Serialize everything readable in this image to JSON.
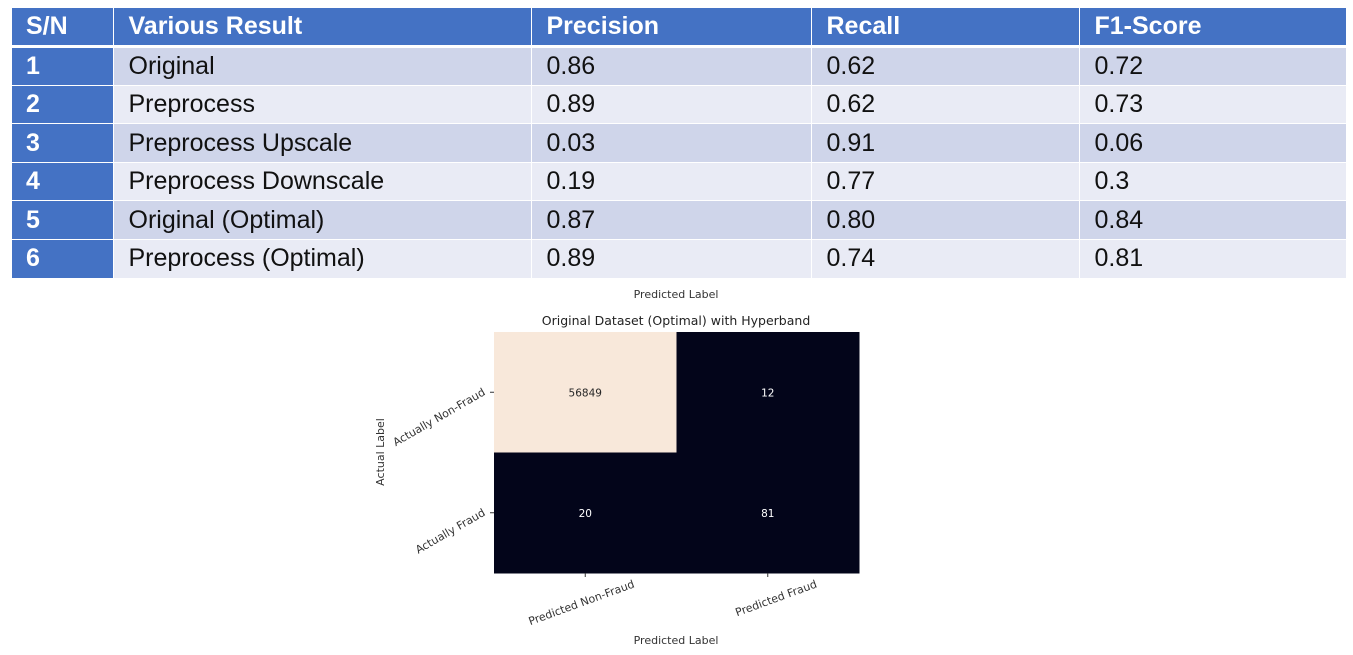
{
  "table": {
    "headers": [
      "S/N",
      "Various Result",
      "Precision",
      "Recall",
      "F1-Score"
    ],
    "rows": [
      {
        "sn": "1",
        "result": "Original",
        "precision": "0.86",
        "recall": "0.62",
        "f1": "0.72"
      },
      {
        "sn": "2",
        "result": "Preprocess",
        "precision": "0.89",
        "recall": "0.62",
        "f1": "0.73"
      },
      {
        "sn": "3",
        "result": "Preprocess Upscale",
        "precision": "0.03",
        "recall": "0.91",
        "f1": "0.06"
      },
      {
        "sn": "4",
        "result": "Preprocess Downscale",
        "precision": "0.19",
        "recall": "0.77",
        "f1": "0.3"
      },
      {
        "sn": "5",
        "result": "Original (Optimal)",
        "precision": "0.87",
        "recall": "0.80",
        "f1": "0.84"
      },
      {
        "sn": "6",
        "result": "Preprocess (Optimal)",
        "precision": "0.89",
        "recall": "0.74",
        "f1": "0.81"
      }
    ]
  },
  "chart_data": {
    "type": "heatmap",
    "title": "Original Dataset (Optimal) with Hyperband",
    "top_label": "Predicted Label",
    "xlabel": "Predicted Label",
    "ylabel": "Actual Label",
    "x_categories": [
      "Predicted Non-Fraud",
      "Predicted Fraud"
    ],
    "y_categories": [
      "Actually Non-Fraud",
      "Actually Fraud"
    ],
    "values": [
      [
        56849,
        12
      ],
      [
        20,
        81
      ]
    ],
    "colors": {
      "high": "#f8e8da",
      "low": "#03051a"
    },
    "colorbar": false
  }
}
